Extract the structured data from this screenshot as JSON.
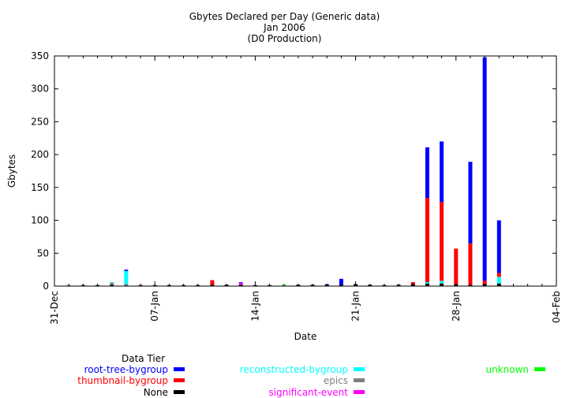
{
  "chart_data": {
    "type": "bar",
    "stacked": true,
    "title": "Gbytes Declared per Day (Generic data)",
    "subtitle_1": "Jan 2006",
    "subtitle_2": "(D0 Production)",
    "xlabel": "Date",
    "ylabel": "Gbytes",
    "ylim": [
      0,
      350
    ],
    "y_ticks": [
      "0",
      "50",
      "100",
      "150",
      "200",
      "250",
      "300",
      "350"
    ],
    "x_tick_labels": [
      "31-Dec",
      "07-Jan",
      "14-Jan",
      "21-Jan",
      "28-Jan",
      "04-Feb"
    ],
    "x_day_range": [
      0,
      35
    ],
    "grid": false,
    "legend_title": "Data Tier",
    "legend_placement": "bottom",
    "categories": [
      "01-Jan",
      "02-Jan",
      "03-Jan",
      "04-Jan",
      "05-Jan",
      "06-Jan",
      "07-Jan",
      "08-Jan",
      "09-Jan",
      "10-Jan",
      "11-Jan",
      "12-Jan",
      "13-Jan",
      "14-Jan",
      "15-Jan",
      "16-Jan",
      "17-Jan",
      "18-Jan",
      "19-Jan",
      "20-Jan",
      "21-Jan",
      "22-Jan",
      "23-Jan",
      "24-Jan",
      "25-Jan",
      "26-Jan",
      "27-Jan",
      "28-Jan",
      "29-Jan",
      "30-Jan",
      "31-Jan"
    ],
    "series": [
      {
        "name": "None",
        "color": "#000000",
        "values": [
          1,
          1.5,
          1.5,
          2,
          1,
          1.5,
          1.5,
          1.5,
          1.5,
          1.5,
          2,
          2,
          2,
          1.5,
          1.5,
          1,
          2,
          2,
          2,
          2,
          3,
          2,
          1.5,
          2,
          3,
          4,
          4,
          3,
          2,
          3,
          4
        ]
      },
      {
        "name": "epics",
        "color": "#808080",
        "values": [
          0,
          0,
          0,
          3,
          2,
          0,
          0,
          0,
          0,
          0,
          0,
          0,
          0,
          0,
          0,
          0,
          0,
          0,
          0,
          0,
          0,
          0,
          0,
          0,
          0,
          0,
          0,
          0,
          0,
          0,
          0
        ]
      },
      {
        "name": "significant-event",
        "color": "#ff00ff",
        "values": [
          0,
          0,
          0,
          0,
          0,
          0,
          0,
          0,
          0,
          0,
          0,
          0,
          3,
          0,
          0,
          0,
          0,
          0,
          0,
          0,
          0,
          0,
          0,
          0,
          0,
          0,
          0,
          0,
          0,
          0,
          0
        ]
      },
      {
        "name": "reconstructed-bygroup",
        "color": "#00ffff",
        "values": [
          0,
          0,
          0,
          1,
          20,
          0,
          0,
          0,
          0,
          0,
          0,
          0,
          0,
          0,
          0,
          0,
          0,
          0,
          0,
          0,
          0,
          0,
          0,
          0,
          0,
          2,
          4,
          0,
          0,
          0,
          10
        ]
      },
      {
        "name": "unknown",
        "color": "#00ff00",
        "values": [
          0,
          0,
          0,
          0,
          0,
          0,
          0,
          0,
          0,
          0,
          0,
          0,
          0,
          0,
          0,
          1,
          0,
          0,
          0,
          0,
          0,
          0,
          0,
          0,
          0,
          0,
          0,
          0,
          0,
          0,
          0
        ]
      },
      {
        "name": "thumbnail-bygroup",
        "color": "#ff0000",
        "values": [
          0,
          0,
          0,
          0,
          0,
          0,
          0,
          0,
          0,
          0,
          7,
          0,
          0,
          0,
          0,
          0,
          0,
          0,
          0,
          0,
          0,
          0,
          0,
          0,
          3,
          128,
          120,
          54,
          63,
          5,
          6
        ]
      },
      {
        "name": "root-tree-bygroup",
        "color": "#0000ff",
        "values": [
          0,
          0,
          0,
          0,
          2,
          0,
          0,
          0,
          0,
          0,
          0,
          0,
          1,
          0,
          0,
          0,
          0,
          0,
          1,
          9,
          0,
          0,
          0,
          0,
          0,
          77,
          92,
          0,
          124,
          340,
          80
        ]
      }
    ]
  },
  "legend": [
    {
      "label": "root-tree-bygroup",
      "color": "#0000ff",
      "text_color": "#0000ff",
      "col": 0,
      "row": 0
    },
    {
      "label": "thumbnail-bygroup",
      "color": "#ff0000",
      "text_color": "#ff0000",
      "col": 0,
      "row": 1
    },
    {
      "label": "None",
      "color": "#000000",
      "text_color": "#000000",
      "col": 0,
      "row": 2
    },
    {
      "label": "reconstructed-bygroup",
      "color": "#00ffff",
      "text_color": "#00ffff",
      "col": 1,
      "row": 0
    },
    {
      "label": "epics",
      "color": "#808080",
      "text_color": "#808080",
      "col": 1,
      "row": 1
    },
    {
      "label": "significant-event",
      "color": "#ff00ff",
      "text_color": "#ff00ff",
      "col": 1,
      "row": 2
    },
    {
      "label": "unknown",
      "color": "#00ff00",
      "text_color": "#00ff00",
      "col": 2,
      "row": 0
    }
  ]
}
